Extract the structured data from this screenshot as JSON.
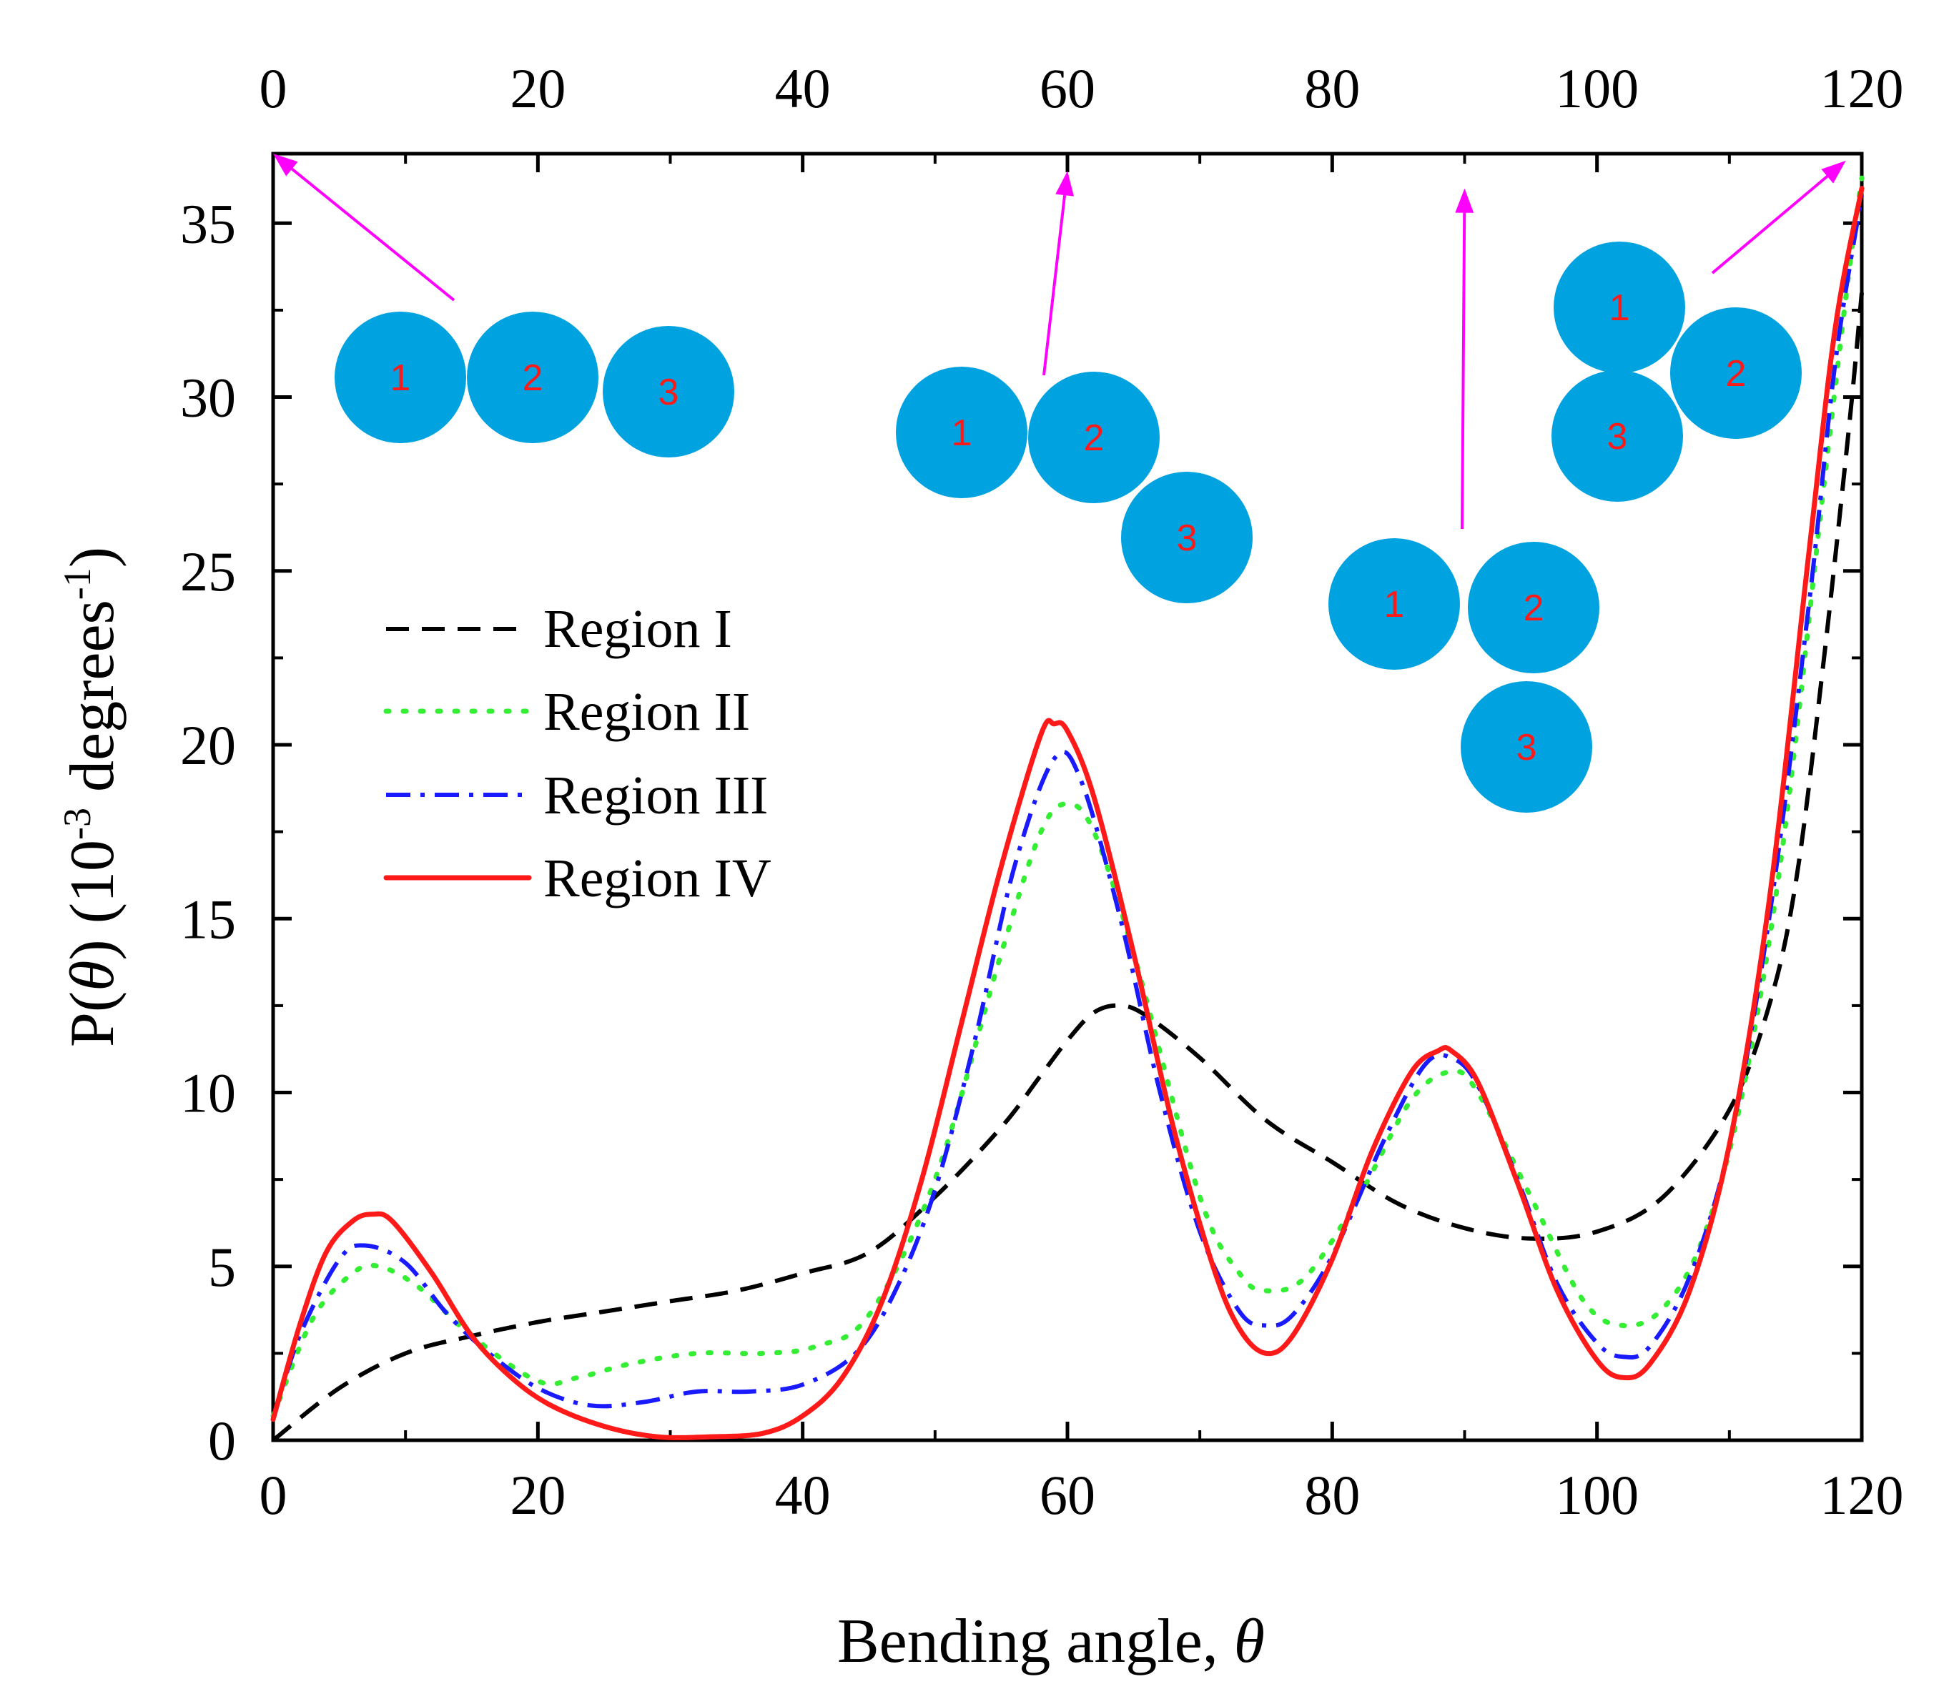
{
  "chart_data": {
    "type": "line",
    "title": "",
    "xlabel": "Bending angle, ",
    "xlabel_symbol": "θ",
    "ylabel_prefix": "P(",
    "ylabel_symbol": "θ",
    "ylabel_middle": ") (10",
    "ylabel_exp1": "-3",
    "ylabel_unit": " degrees",
    "ylabel_exp2": "-1",
    "ylabel_end": ")",
    "xlim": [
      0,
      120
    ],
    "ylim": [
      0,
      37
    ],
    "xticks": [
      0,
      20,
      40,
      60,
      80,
      100,
      120
    ],
    "yticks": [
      0,
      5,
      10,
      15,
      20,
      25,
      30,
      35
    ],
    "grid": false,
    "legend_position": "center-left",
    "series": [
      {
        "name": "Region I",
        "color": "#000000",
        "style": "dashed",
        "points": [
          [
            0,
            0
          ],
          [
            5,
            1.5
          ],
          [
            10,
            2.5
          ],
          [
            15,
            3.0
          ],
          [
            20,
            3.4
          ],
          [
            25,
            3.7
          ],
          [
            30,
            4.0
          ],
          [
            35,
            4.3
          ],
          [
            40,
            4.8
          ],
          [
            45,
            5.4
          ],
          [
            50,
            7.0
          ],
          [
            55,
            9.0
          ],
          [
            58,
            10.5
          ],
          [
            60,
            11.5
          ],
          [
            62,
            12.3
          ],
          [
            64,
            12.5
          ],
          [
            66,
            12.2
          ],
          [
            70,
            11.0
          ],
          [
            75,
            9.2
          ],
          [
            80,
            8.0
          ],
          [
            85,
            6.8
          ],
          [
            90,
            6.1
          ],
          [
            95,
            5.8
          ],
          [
            100,
            6.0
          ],
          [
            105,
            7.0
          ],
          [
            110,
            9.5
          ],
          [
            113,
            12.5
          ],
          [
            115,
            16.0
          ],
          [
            117,
            22.0
          ],
          [
            119,
            29.0
          ],
          [
            120,
            33.0
          ]
        ]
      },
      {
        "name": "Region II",
        "color": "#33ee33",
        "style": "dotted",
        "points": [
          [
            0,
            0.7
          ],
          [
            3,
            3.5
          ],
          [
            6,
            4.8
          ],
          [
            8,
            5.0
          ],
          [
            11,
            4.4
          ],
          [
            15,
            3.0
          ],
          [
            20,
            1.7
          ],
          [
            23,
            1.8
          ],
          [
            27,
            2.2
          ],
          [
            32,
            2.5
          ],
          [
            37,
            2.5
          ],
          [
            41,
            2.7
          ],
          [
            45,
            3.6
          ],
          [
            50,
            7.5
          ],
          [
            55,
            14.0
          ],
          [
            58,
            17.5
          ],
          [
            60,
            18.3
          ],
          [
            62,
            17.5
          ],
          [
            65,
            14.0
          ],
          [
            70,
            7.0
          ],
          [
            73,
            4.8
          ],
          [
            75,
            4.3
          ],
          [
            78,
            4.7
          ],
          [
            82,
            7.0
          ],
          [
            86,
            9.8
          ],
          [
            89,
            10.6
          ],
          [
            91,
            10.0
          ],
          [
            95,
            7.0
          ],
          [
            99,
            4.0
          ],
          [
            102,
            3.3
          ],
          [
            105,
            3.8
          ],
          [
            108,
            5.8
          ],
          [
            111,
            10.0
          ],
          [
            114,
            17.0
          ],
          [
            117,
            27.0
          ],
          [
            119,
            33.5
          ],
          [
            120,
            36.3
          ]
        ]
      },
      {
        "name": "Region III",
        "color": "#1a1aff",
        "style": "dashdot",
        "points": [
          [
            0,
            0.6
          ],
          [
            2,
            3.0
          ],
          [
            5,
            5.2
          ],
          [
            7,
            5.6
          ],
          [
            10,
            5.1
          ],
          [
            13,
            3.7
          ],
          [
            16,
            2.6
          ],
          [
            20,
            1.5
          ],
          [
            24,
            1.0
          ],
          [
            28,
            1.1
          ],
          [
            32,
            1.4
          ],
          [
            36,
            1.4
          ],
          [
            40,
            1.6
          ],
          [
            44,
            2.5
          ],
          [
            47,
            4.3
          ],
          [
            50,
            7.2
          ],
          [
            53,
            11.5
          ],
          [
            56,
            16.5
          ],
          [
            59,
            19.6
          ],
          [
            61,
            19.0
          ],
          [
            64,
            15.0
          ],
          [
            67,
            10.0
          ],
          [
            70,
            6.0
          ],
          [
            73,
            3.7
          ],
          [
            75,
            3.3
          ],
          [
            77,
            3.6
          ],
          [
            80,
            5.3
          ],
          [
            84,
            8.7
          ],
          [
            87,
            10.8
          ],
          [
            89,
            11.0
          ],
          [
            91,
            10.2
          ],
          [
            94,
            7.5
          ],
          [
            97,
            4.5
          ],
          [
            100,
            2.8
          ],
          [
            102,
            2.4
          ],
          [
            104,
            2.7
          ],
          [
            107,
            4.7
          ],
          [
            110,
            8.5
          ],
          [
            113,
            15.0
          ],
          [
            116,
            24.0
          ],
          [
            118,
            31.0
          ],
          [
            120,
            35.8
          ]
        ]
      },
      {
        "name": "Region IV",
        "color": "#ff1a1a",
        "style": "solid",
        "points": [
          [
            0,
            0.6
          ],
          [
            2,
            3.3
          ],
          [
            4,
            5.4
          ],
          [
            6,
            6.3
          ],
          [
            7.5,
            6.5
          ],
          [
            9,
            6.3
          ],
          [
            12,
            4.8
          ],
          [
            15,
            3.0
          ],
          [
            18,
            1.8
          ],
          [
            21,
            1.0
          ],
          [
            25,
            0.4
          ],
          [
            29,
            0.1
          ],
          [
            33,
            0.1
          ],
          [
            37,
            0.2
          ],
          [
            40,
            0.7
          ],
          [
            43,
            1.8
          ],
          [
            46,
            4.0
          ],
          [
            49,
            7.5
          ],
          [
            52,
            12.0
          ],
          [
            55,
            16.5
          ],
          [
            58,
            20.3
          ],
          [
            59,
            20.6
          ],
          [
            60,
            20.4
          ],
          [
            62,
            18.5
          ],
          [
            65,
            14.0
          ],
          [
            68,
            9.0
          ],
          [
            71,
            5.0
          ],
          [
            73,
            3.2
          ],
          [
            75,
            2.5
          ],
          [
            77,
            3.0
          ],
          [
            80,
            5.2
          ],
          [
            83,
            8.3
          ],
          [
            86,
            10.6
          ],
          [
            88,
            11.2
          ],
          [
            89,
            11.2
          ],
          [
            91,
            10.3
          ],
          [
            94,
            7.4
          ],
          [
            97,
            4.3
          ],
          [
            100,
            2.3
          ],
          [
            102,
            1.8
          ],
          [
            104,
            2.2
          ],
          [
            107,
            4.3
          ],
          [
            110,
            8.5
          ],
          [
            113,
            15.5
          ],
          [
            116,
            25.5
          ],
          [
            118,
            32.0
          ],
          [
            120,
            36.0
          ]
        ]
      }
    ],
    "annotations": [
      {
        "label": "0° configuration",
        "beads": [
          "1",
          "2",
          "3"
        ],
        "arrow_target": [
          0,
          37
        ]
      },
      {
        "label": "60° configuration",
        "beads": [
          "1",
          "2",
          "3"
        ],
        "arrow_target": [
          60,
          36.5
        ]
      },
      {
        "label": "90° configuration",
        "beads": [
          "1",
          "2",
          "3"
        ],
        "arrow_target": [
          90,
          36
        ]
      },
      {
        "label": "120° configuration",
        "beads": [
          "1",
          "2",
          "3"
        ],
        "arrow_target": [
          118.8,
          36.8
        ]
      }
    ],
    "annotation_arrow_color": "#ff00ff",
    "bead_color": "#00a2e0"
  }
}
